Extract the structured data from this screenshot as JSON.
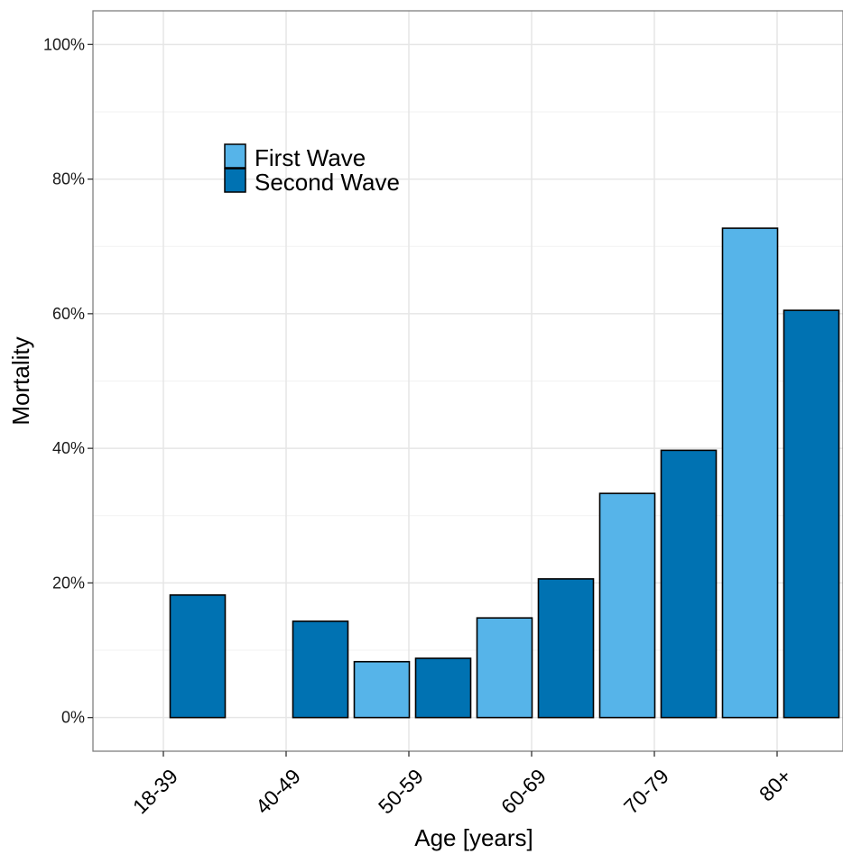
{
  "chart_data": {
    "type": "bar",
    "title": "",
    "xlabel": "Age [years]",
    "ylabel": "Mortality",
    "categories": [
      "18-39",
      "40-49",
      "50-59",
      "60-69",
      "70-79",
      "80+"
    ],
    "series": [
      {
        "name": "First Wave",
        "color": "#56B4E9",
        "values": [
          0,
          0,
          8.3,
          14.8,
          33.3,
          72.7
        ]
      },
      {
        "name": "Second Wave",
        "color": "#0072B2",
        "values": [
          18.2,
          14.3,
          8.8,
          20.6,
          39.7,
          60.5
        ]
      }
    ],
    "ylim": [
      -5,
      105
    ],
    "yticks": [
      0,
      20,
      40,
      60,
      80,
      100
    ],
    "ytick_labels": [
      "0%",
      "20%",
      "40%",
      "60%",
      "80%",
      "100%"
    ],
    "grid": true,
    "legend_position": "top-left"
  }
}
